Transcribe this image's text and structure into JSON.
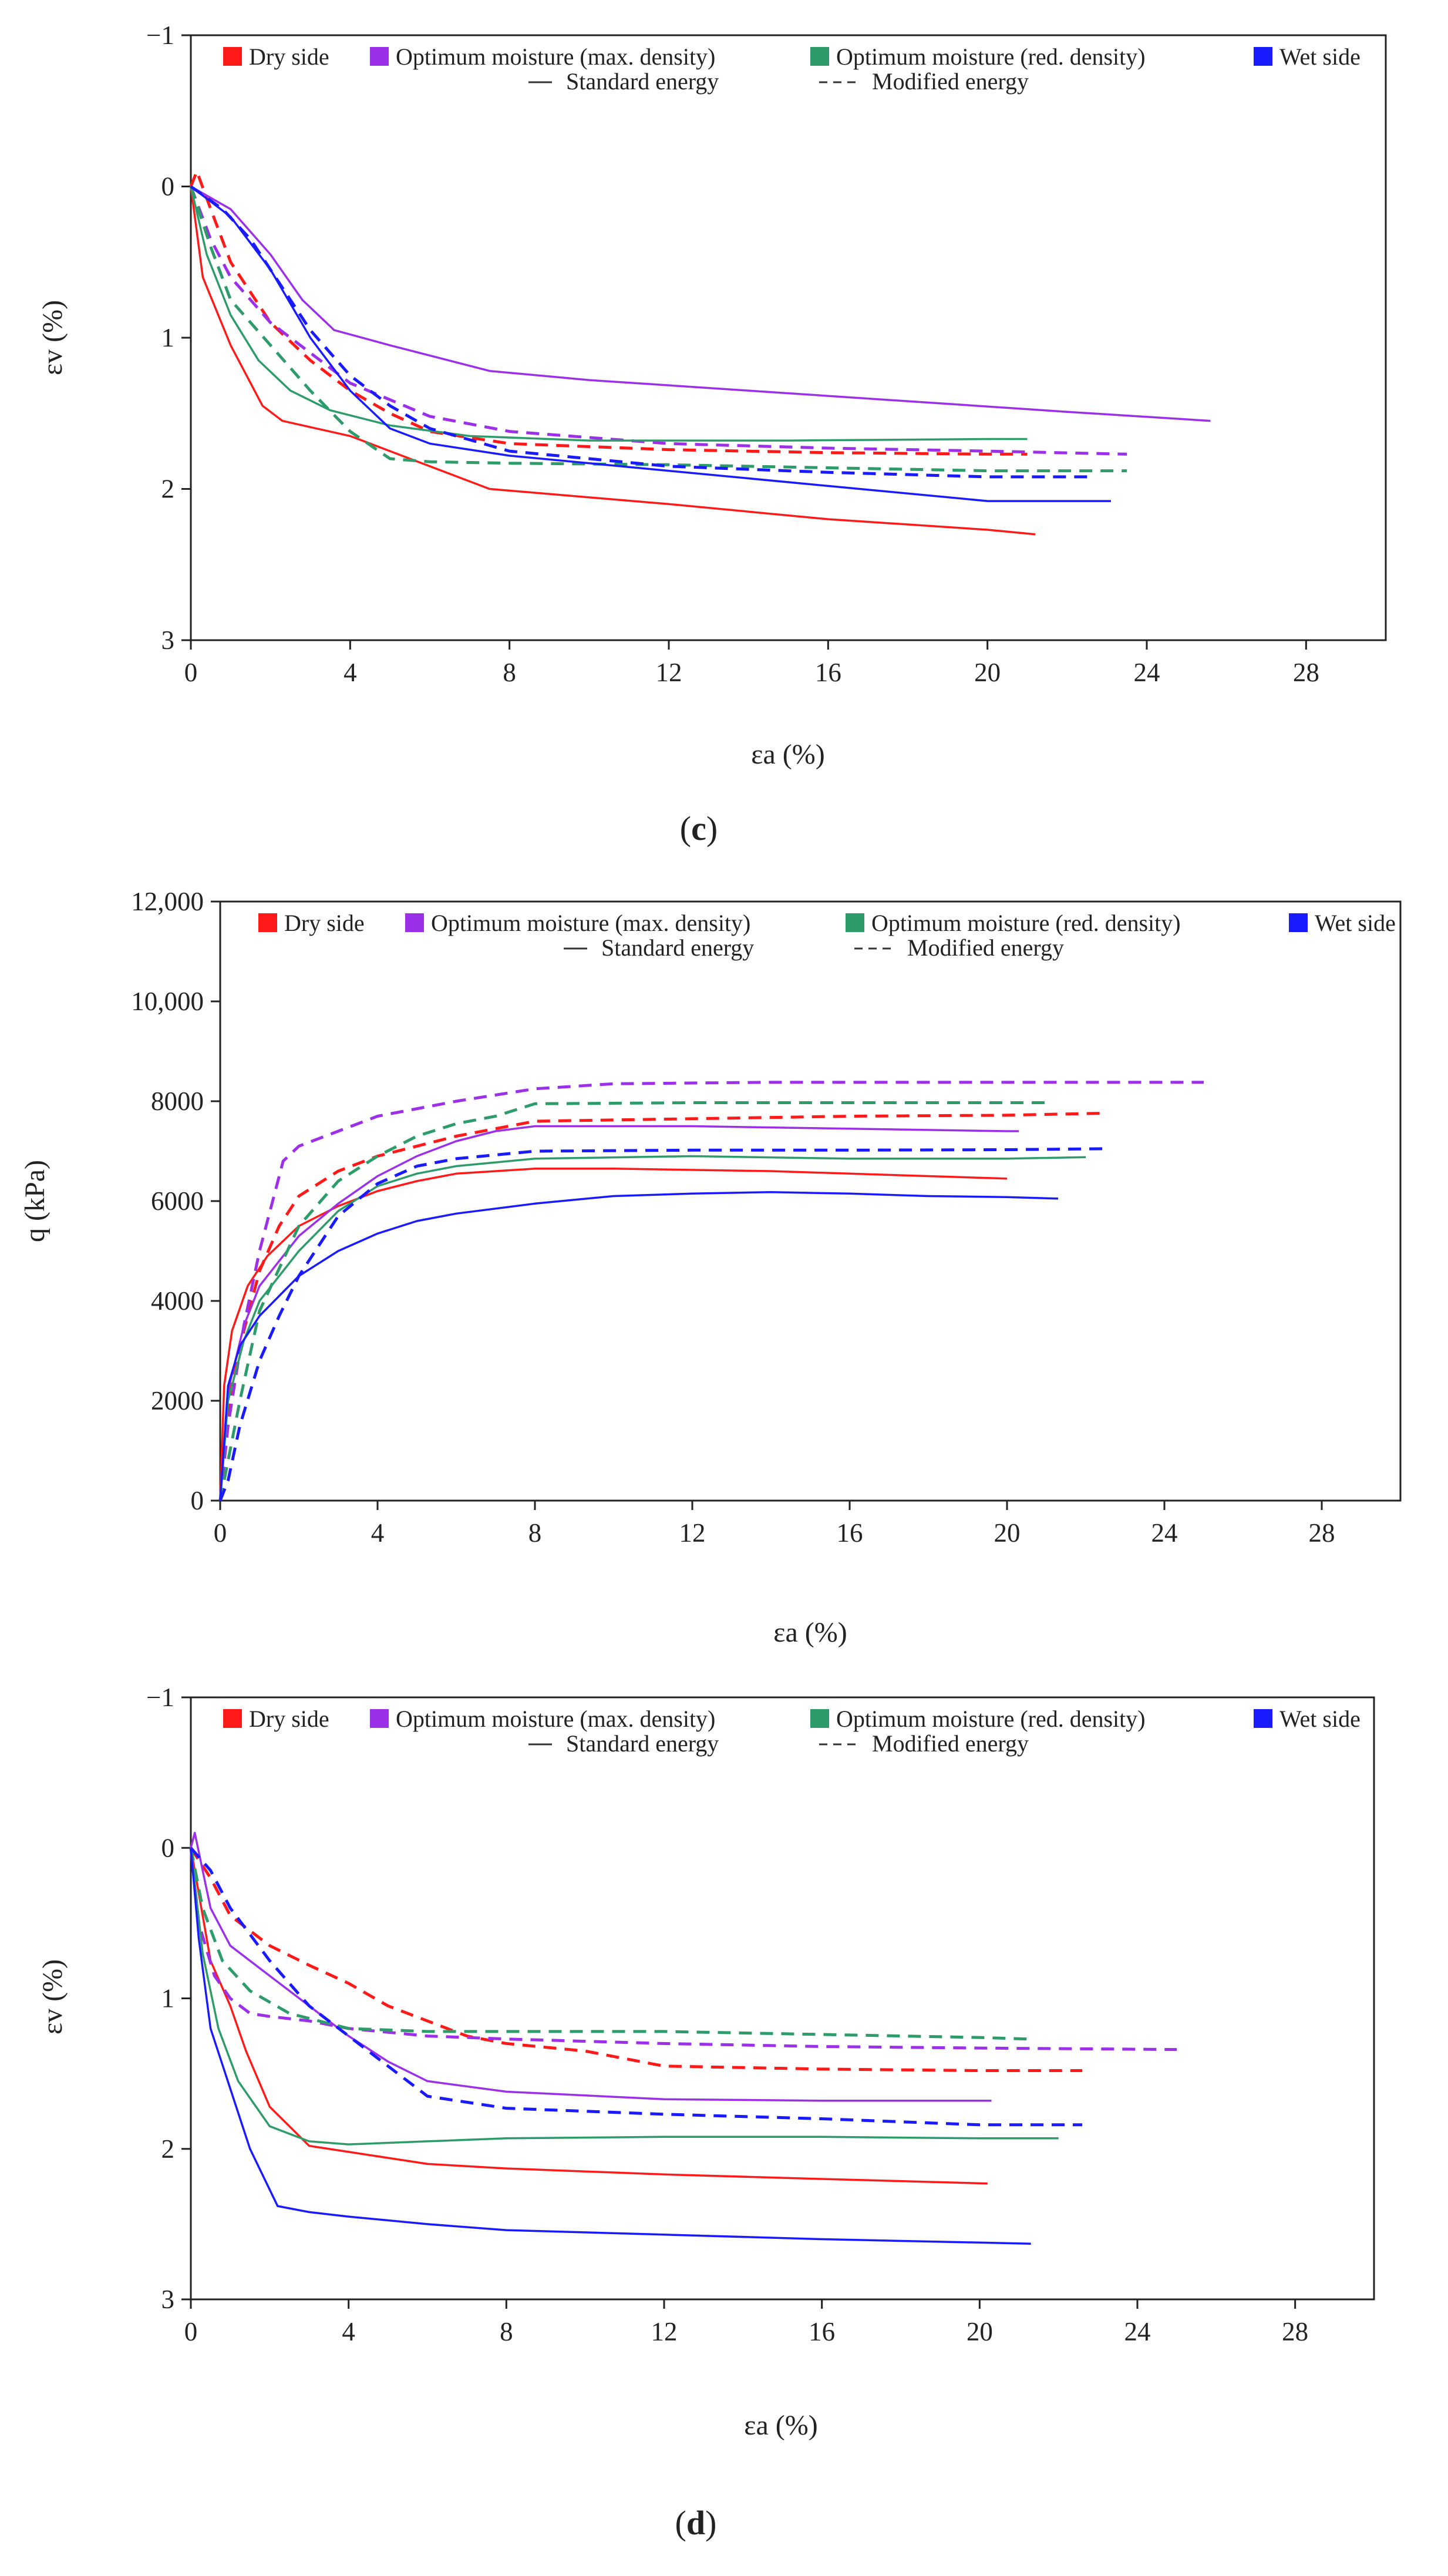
{
  "legend": {
    "series": [
      {
        "key": "dry",
        "label": "Dry side",
        "color": "#ff1a1a"
      },
      {
        "key": "optmax",
        "label": "Optimum moisture (max. density)",
        "color": "#9b30e8"
      },
      {
        "key": "optred",
        "label": "Optimum moisture (red. density)",
        "color": "#2e9c6a"
      },
      {
        "key": "wet",
        "label": "Wet side",
        "color": "#1a1aff"
      }
    ],
    "standard_label": "Standard energy",
    "modified_label": "Modified energy"
  },
  "chart_data": [
    {
      "type": "line",
      "id": "top",
      "xlabel": "εa (%)",
      "ylabel": "εv (%)",
      "xlim": [
        0,
        30
      ],
      "ylim": [
        3,
        -1
      ],
      "xticks": [
        0,
        4,
        8,
        12,
        16,
        20,
        24,
        28
      ],
      "yticks": [
        -1,
        0,
        1,
        2,
        3
      ],
      "ytick_labels": [
        "−1",
        "0",
        "1",
        "2",
        "3"
      ],
      "caption_open": "(",
      "caption_letter": "c",
      "caption_close": ")",
      "series": [
        {
          "name": "Dry side",
          "energy": "Standard energy",
          "color": "#ff1a1a",
          "x": [
            0,
            0.3,
            1,
            1.8,
            2.3,
            4,
            5,
            7.5,
            12,
            16,
            20,
            21.2
          ],
          "y": [
            0,
            0.6,
            1.05,
            1.45,
            1.55,
            1.65,
            1.75,
            2.0,
            2.1,
            2.2,
            2.27,
            2.3
          ]
        },
        {
          "name": "Dry side",
          "energy": "Modified energy",
          "color": "#ff1a1a",
          "x": [
            0,
            0.15,
            0.5,
            1,
            2,
            3,
            4,
            5,
            6,
            8,
            12,
            16,
            20,
            21
          ],
          "y": [
            0,
            -0.1,
            0.15,
            0.5,
            0.9,
            1.15,
            1.35,
            1.5,
            1.62,
            1.7,
            1.74,
            1.76,
            1.77,
            1.77
          ]
        },
        {
          "name": "Optimum moisture (max. density)",
          "energy": "Standard energy",
          "color": "#9b30e8",
          "x": [
            0,
            1,
            2,
            2.8,
            3.6,
            5,
            7.5,
            10,
            14,
            18,
            22,
            25.6
          ],
          "y": [
            0,
            0.15,
            0.45,
            0.75,
            0.95,
            1.05,
            1.22,
            1.28,
            1.35,
            1.42,
            1.49,
            1.55
          ]
        },
        {
          "name": "Optimum moisture (max. density)",
          "energy": "Modified energy",
          "color": "#9b30e8",
          "x": [
            0,
            0.5,
            1,
            2,
            3,
            4,
            6,
            8,
            12,
            16,
            20,
            23.5
          ],
          "y": [
            0,
            0.35,
            0.6,
            0.9,
            1.1,
            1.3,
            1.52,
            1.62,
            1.7,
            1.73,
            1.75,
            1.77
          ]
        },
        {
          "name": "Optimum moisture (red. density)",
          "energy": "Standard energy",
          "color": "#2e9c6a",
          "x": [
            0,
            0.4,
            1,
            1.7,
            2.5,
            3.5,
            5,
            7,
            10,
            15,
            20,
            21
          ],
          "y": [
            0,
            0.45,
            0.85,
            1.15,
            1.35,
            1.48,
            1.58,
            1.65,
            1.68,
            1.68,
            1.67,
            1.67
          ]
        },
        {
          "name": "Optimum moisture (red. density)",
          "energy": "Modified energy",
          "color": "#2e9c6a",
          "x": [
            0,
            0.5,
            1,
            2,
            3,
            4,
            5,
            6,
            8,
            12,
            16,
            20,
            23.5
          ],
          "y": [
            0,
            0.4,
            0.75,
            1.05,
            1.35,
            1.62,
            1.8,
            1.82,
            1.83,
            1.84,
            1.86,
            1.88,
            1.88
          ]
        },
        {
          "name": "Wet side",
          "energy": "Standard energy",
          "color": "#1a1aff",
          "x": [
            0,
            1,
            2,
            3,
            4,
            5,
            6,
            8,
            12,
            16,
            20,
            23.1
          ],
          "y": [
            0,
            0.2,
            0.55,
            1.0,
            1.35,
            1.6,
            1.7,
            1.78,
            1.88,
            1.98,
            2.08,
            2.08
          ]
        },
        {
          "name": "Wet side",
          "energy": "Modified energy",
          "color": "#1a1aff",
          "x": [
            0,
            0.8,
            1.5,
            2,
            3,
            4,
            5,
            6,
            8,
            12,
            16,
            20,
            22.5
          ],
          "y": [
            0,
            0.15,
            0.35,
            0.55,
            0.95,
            1.25,
            1.45,
            1.6,
            1.75,
            1.85,
            1.89,
            1.92,
            1.92
          ]
        }
      ]
    },
    {
      "type": "line",
      "id": "middle",
      "xlabel": "εa (%)",
      "ylabel": "q (kPa)",
      "xlim": [
        0,
        30
      ],
      "ylim": [
        0,
        12000
      ],
      "xticks": [
        0,
        4,
        8,
        12,
        16,
        20,
        24,
        28
      ],
      "yticks": [
        0,
        2000,
        4000,
        6000,
        8000,
        10000,
        12000
      ],
      "ytick_labels": [
        "0",
        "2000",
        "4000",
        "6000",
        "8000",
        "10,000",
        "12,000"
      ],
      "series": [
        {
          "name": "Dry side",
          "energy": "Standard energy",
          "color": "#ff1a1a",
          "x": [
            0,
            0.1,
            0.3,
            0.7,
            1.2,
            2,
            3,
            4,
            5,
            6,
            8,
            10,
            14,
            18,
            20
          ],
          "y": [
            0,
            2300,
            3400,
            4300,
            4900,
            5500,
            5900,
            6200,
            6400,
            6550,
            6650,
            6650,
            6600,
            6500,
            6450
          ]
        },
        {
          "name": "Dry side",
          "energy": "Modified energy",
          "color": "#ff1a1a",
          "x": [
            0,
            0.3,
            0.7,
            1,
            1.5,
            2,
            3,
            4,
            6,
            8,
            12,
            16,
            20,
            22.5
          ],
          "y": [
            0,
            2500,
            3700,
            4600,
            5500,
            6100,
            6600,
            6900,
            7300,
            7600,
            7650,
            7700,
            7720,
            7760
          ]
        },
        {
          "name": "Optimum moisture (max. density)",
          "energy": "Standard energy",
          "color": "#9b30e8",
          "x": [
            0,
            0.2,
            0.6,
            1,
            2,
            3,
            4,
            5,
            6,
            7,
            8,
            12,
            16,
            20,
            20.3
          ],
          "y": [
            0,
            2200,
            3500,
            4300,
            5300,
            5950,
            6500,
            6900,
            7200,
            7400,
            7500,
            7500,
            7450,
            7400,
            7400
          ]
        },
        {
          "name": "Optimum moisture (max. density)",
          "energy": "Modified energy",
          "color": "#9b30e8",
          "x": [
            0,
            0.2,
            0.6,
            1,
            1.6,
            2,
            3,
            4,
            6,
            8,
            10,
            14,
            18,
            22,
            25
          ],
          "y": [
            0,
            1500,
            3500,
            5000,
            6800,
            7100,
            7400,
            7700,
            8000,
            8250,
            8350,
            8380,
            8380,
            8380,
            8380
          ]
        },
        {
          "name": "Optimum moisture (red. density)",
          "energy": "Standard energy",
          "color": "#2e9c6a",
          "x": [
            0,
            0.2,
            0.6,
            1,
            2,
            3,
            4,
            5,
            6,
            8,
            12,
            16,
            20,
            22
          ],
          "y": [
            0,
            2000,
            3200,
            4000,
            5000,
            5800,
            6300,
            6550,
            6700,
            6850,
            6900,
            6850,
            6850,
            6880
          ]
        },
        {
          "name": "Optimum moisture (red. density)",
          "energy": "Modified energy",
          "color": "#2e9c6a",
          "x": [
            0,
            0.5,
            1,
            2,
            3,
            4,
            5,
            6,
            7,
            8,
            12,
            16,
            20,
            21
          ],
          "y": [
            0,
            2000,
            3800,
            5500,
            6400,
            6900,
            7300,
            7550,
            7700,
            7950,
            7970,
            7970,
            7970,
            7970
          ]
        },
        {
          "name": "Wet side",
          "energy": "Standard energy",
          "color": "#1a1aff",
          "x": [
            0,
            0.2,
            0.5,
            1,
            2,
            3,
            4,
            5,
            6,
            8,
            10,
            12,
            14,
            16,
            18,
            20,
            21.3
          ],
          "y": [
            0,
            2300,
            3100,
            3700,
            4500,
            5000,
            5350,
            5600,
            5750,
            5950,
            6100,
            6150,
            6180,
            6150,
            6100,
            6080,
            6050
          ]
        },
        {
          "name": "Wet side",
          "energy": "Modified energy",
          "color": "#1a1aff",
          "x": [
            0,
            0.2,
            0.5,
            1,
            1.5,
            2,
            3,
            4,
            5,
            6,
            8,
            12,
            16,
            20,
            22.6
          ],
          "y": [
            0,
            400,
            1500,
            2800,
            3700,
            4500,
            5700,
            6350,
            6700,
            6850,
            7000,
            7020,
            7020,
            7030,
            7050
          ]
        }
      ]
    },
    {
      "type": "line",
      "id": "bottom",
      "xlabel": "εa (%)",
      "ylabel": "εv (%)",
      "xlim": [
        0,
        30
      ],
      "ylim": [
        3,
        -1
      ],
      "xticks": [
        0,
        4,
        8,
        12,
        16,
        20,
        24,
        28
      ],
      "yticks": [
        -1,
        0,
        1,
        2,
        3
      ],
      "ytick_labels": [
        "−1",
        "0",
        "1",
        "2",
        "3"
      ],
      "caption_open": "(",
      "caption_letter": "d",
      "caption_close": ")",
      "series": [
        {
          "name": "Dry side",
          "energy": "Standard energy",
          "color": "#ff1a1a",
          "x": [
            0,
            0.5,
            1,
            1.4,
            2,
            3,
            4,
            6,
            8,
            12,
            16,
            20.2
          ],
          "y": [
            0,
            0.75,
            1.05,
            1.35,
            1.72,
            1.98,
            2.02,
            2.1,
            2.13,
            2.17,
            2.2,
            2.23
          ]
        },
        {
          "name": "Dry side",
          "energy": "Modified energy",
          "color": "#ff1a1a",
          "x": [
            0,
            0.5,
            1,
            2,
            3,
            4,
            5,
            6,
            7,
            8,
            10,
            12,
            16,
            20,
            22.6
          ],
          "y": [
            0,
            0.2,
            0.45,
            0.65,
            0.78,
            0.9,
            1.05,
            1.15,
            1.25,
            1.3,
            1.35,
            1.45,
            1.47,
            1.48,
            1.48
          ]
        },
        {
          "name": "Optimum moisture (max. density)",
          "energy": "Standard energy",
          "color": "#9b30e8",
          "x": [
            0,
            0.1,
            0.5,
            1,
            2,
            3,
            4,
            5,
            6,
            8,
            12,
            16,
            20.3
          ],
          "y": [
            0,
            -0.1,
            0.4,
            0.65,
            0.85,
            1.05,
            1.25,
            1.42,
            1.55,
            1.62,
            1.67,
            1.68,
            1.68
          ]
        },
        {
          "name": "Optimum moisture (max. density)",
          "energy": "Modified energy",
          "color": "#9b30e8",
          "x": [
            0,
            0.2,
            0.6,
            1,
            1.5,
            2,
            3,
            4,
            6,
            8,
            12,
            16,
            20,
            25
          ],
          "y": [
            0,
            0.5,
            0.85,
            1.0,
            1.1,
            1.12,
            1.15,
            1.2,
            1.25,
            1.27,
            1.3,
            1.32,
            1.33,
            1.34
          ]
        },
        {
          "name": "Optimum moisture (red. density)",
          "energy": "Standard energy",
          "color": "#2e9c6a",
          "x": [
            0,
            0.3,
            0.7,
            1.2,
            2,
            3,
            4,
            6,
            8,
            12,
            16,
            20,
            22
          ],
          "y": [
            0,
            0.7,
            1.2,
            1.55,
            1.85,
            1.95,
            1.97,
            1.95,
            1.93,
            1.92,
            1.92,
            1.93,
            1.93
          ]
        },
        {
          "name": "Optimum moisture (red. density)",
          "energy": "Modified energy",
          "color": "#2e9c6a",
          "x": [
            0,
            0.3,
            0.8,
            1.5,
            2.5,
            4,
            6,
            8,
            12,
            16,
            20,
            21.2
          ],
          "y": [
            0,
            0.4,
            0.75,
            0.95,
            1.1,
            1.2,
            1.22,
            1.22,
            1.22,
            1.24,
            1.26,
            1.27
          ]
        },
        {
          "name": "Wet side",
          "energy": "Standard energy",
          "color": "#1a1aff",
          "x": [
            0,
            0.2,
            0.5,
            1,
            1.5,
            2.2,
            3,
            4,
            6,
            8,
            12,
            16,
            21.3
          ],
          "y": [
            0,
            0.6,
            1.2,
            1.6,
            2.0,
            2.38,
            2.42,
            2.45,
            2.5,
            2.54,
            2.57,
            2.6,
            2.63
          ]
        },
        {
          "name": "Wet side",
          "energy": "Modified energy",
          "color": "#1a1aff",
          "x": [
            0,
            0.5,
            1,
            2,
            3,
            4,
            5,
            6,
            8,
            12,
            16,
            20,
            22.6
          ],
          "y": [
            0,
            0.15,
            0.4,
            0.75,
            1.05,
            1.25,
            1.45,
            1.65,
            1.73,
            1.77,
            1.8,
            1.84,
            1.84
          ]
        }
      ]
    }
  ]
}
